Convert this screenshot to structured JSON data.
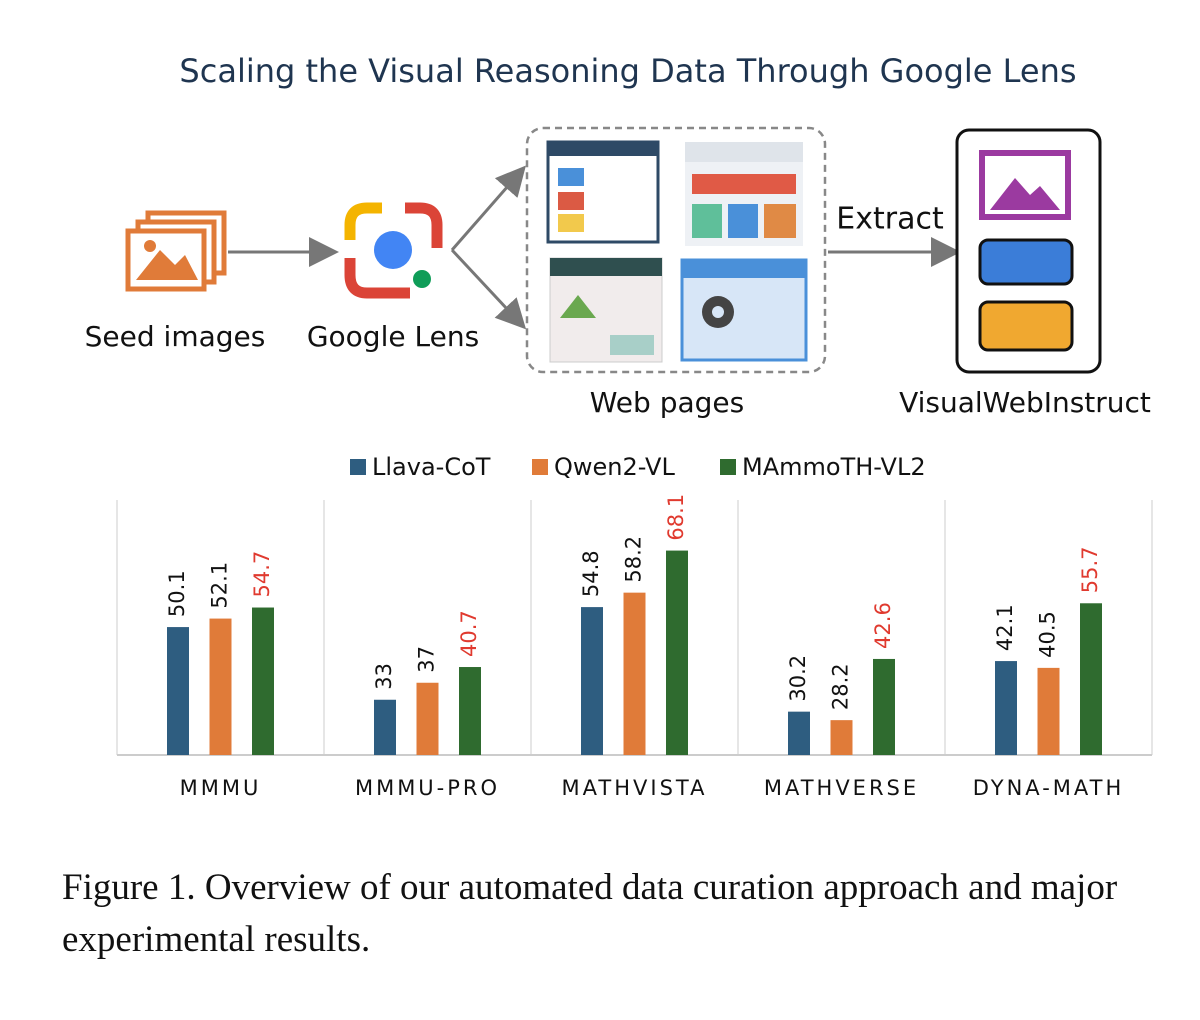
{
  "diagram": {
    "title": "Scaling the Visual Reasoning Data Through Google Lens",
    "nodes": [
      {
        "label": "Seed images"
      },
      {
        "label": "Google Lens"
      },
      {
        "label": "Web pages"
      },
      {
        "label": "VisualWebInstruct"
      }
    ],
    "edges": [
      {
        "label": "Extract"
      }
    ]
  },
  "chart_data": {
    "type": "bar",
    "categories": [
      "MMMU",
      "MMMU-PRO",
      "MATHVISTA",
      "MATHVERSE",
      "DYNA-MATH"
    ],
    "series": [
      {
        "name": "Llava-CoT",
        "color": "#2e5d80",
        "label_color": "#111111",
        "values": [
          50.1,
          33,
          54.8,
          30.2,
          42.1
        ]
      },
      {
        "name": "Qwen2-VL",
        "color": "#e07b39",
        "label_color": "#111111",
        "values": [
          52.1,
          37,
          58.2,
          28.2,
          40.5
        ]
      },
      {
        "name": "MAmmoTH-VL2",
        "color": "#2f6b2f",
        "label_color": "#e03a2f",
        "values": [
          54.7,
          40.7,
          68.1,
          42.6,
          55.7
        ]
      }
    ],
    "ylim": [
      20,
      80
    ],
    "legend": "top"
  },
  "caption": "Figure 1. Overview of our automated data curation approach and major experimental results."
}
